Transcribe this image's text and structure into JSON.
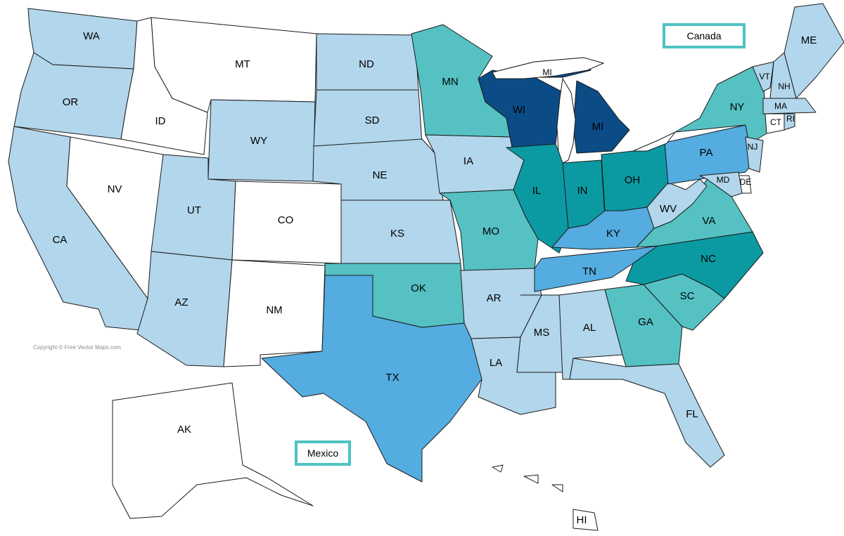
{
  "colors": {
    "light": "#b2d6ec",
    "white": "#ffffff",
    "teal": "#55c1c3",
    "dark_teal": "#0c9aa2",
    "medium_blue": "#54ace0",
    "navy": "#0b4b86",
    "box_border": "#4fc2c4"
  },
  "labels": {
    "canada": "Canada",
    "mexico": "Mexico",
    "copyright": "Copyright © Free Vector Maps.com"
  },
  "states": [
    {
      "code": "WA",
      "label": "WA",
      "fill": "light"
    },
    {
      "code": "OR",
      "label": "OR",
      "fill": "light"
    },
    {
      "code": "CA",
      "label": "CA",
      "fill": "light"
    },
    {
      "code": "ID",
      "label": "ID",
      "fill": "white"
    },
    {
      "code": "NV",
      "label": "NV",
      "fill": "white"
    },
    {
      "code": "MT",
      "label": "MT",
      "fill": "white"
    },
    {
      "code": "WY",
      "label": "WY",
      "fill": "light"
    },
    {
      "code": "UT",
      "label": "UT",
      "fill": "light"
    },
    {
      "code": "AZ",
      "label": "AZ",
      "fill": "light"
    },
    {
      "code": "CO",
      "label": "CO",
      "fill": "white"
    },
    {
      "code": "NM",
      "label": "NM",
      "fill": "white"
    },
    {
      "code": "ND",
      "label": "ND",
      "fill": "light"
    },
    {
      "code": "SD",
      "label": "SD",
      "fill": "light"
    },
    {
      "code": "NE",
      "label": "NE",
      "fill": "light"
    },
    {
      "code": "KS",
      "label": "KS",
      "fill": "light"
    },
    {
      "code": "OK",
      "label": "OK",
      "fill": "teal"
    },
    {
      "code": "TX",
      "label": "TX",
      "fill": "medium_blue"
    },
    {
      "code": "MN",
      "label": "MN",
      "fill": "teal"
    },
    {
      "code": "IA",
      "label": "IA",
      "fill": "light"
    },
    {
      "code": "MO",
      "label": "MO",
      "fill": "teal"
    },
    {
      "code": "AR",
      "label": "AR",
      "fill": "light"
    },
    {
      "code": "LA",
      "label": "LA",
      "fill": "light"
    },
    {
      "code": "WI",
      "label": "WI",
      "fill": "navy"
    },
    {
      "code": "MI-U",
      "label": "MI",
      "fill": "navy"
    },
    {
      "code": "MI",
      "label": "MI",
      "fill": "navy"
    },
    {
      "code": "IL",
      "label": "IL",
      "fill": "dark_teal"
    },
    {
      "code": "IN",
      "label": "IN",
      "fill": "dark_teal"
    },
    {
      "code": "OH",
      "label": "OH",
      "fill": "dark_teal"
    },
    {
      "code": "KY",
      "label": "KY",
      "fill": "medium_blue"
    },
    {
      "code": "TN",
      "label": "TN",
      "fill": "medium_blue"
    },
    {
      "code": "MS",
      "label": "MS",
      "fill": "light"
    },
    {
      "code": "AL",
      "label": "AL",
      "fill": "light"
    },
    {
      "code": "GA",
      "label": "GA",
      "fill": "teal"
    },
    {
      "code": "FL",
      "label": "FL",
      "fill": "light"
    },
    {
      "code": "SC",
      "label": "SC",
      "fill": "teal"
    },
    {
      "code": "NC",
      "label": "NC",
      "fill": "dark_teal"
    },
    {
      "code": "VA",
      "label": "VA",
      "fill": "teal"
    },
    {
      "code": "WV",
      "label": "WV",
      "fill": "light"
    },
    {
      "code": "PA",
      "label": "PA",
      "fill": "medium_blue"
    },
    {
      "code": "NY",
      "label": "NY",
      "fill": "teal"
    },
    {
      "code": "VT",
      "label": "VT",
      "fill": "light"
    },
    {
      "code": "NH",
      "label": "NH",
      "fill": "light"
    },
    {
      "code": "ME",
      "label": "ME",
      "fill": "light"
    },
    {
      "code": "MA",
      "label": "MA",
      "fill": "light"
    },
    {
      "code": "CT",
      "label": "CT",
      "fill": "white"
    },
    {
      "code": "RI",
      "label": "RI",
      "fill": "light"
    },
    {
      "code": "NJ",
      "label": "NJ",
      "fill": "light"
    },
    {
      "code": "DE",
      "label": "DE",
      "fill": "white"
    },
    {
      "code": "MD",
      "label": "MD",
      "fill": "light"
    },
    {
      "code": "AK",
      "label": "AK",
      "fill": "white"
    },
    {
      "code": "HI",
      "label": "HI",
      "fill": "white"
    }
  ]
}
